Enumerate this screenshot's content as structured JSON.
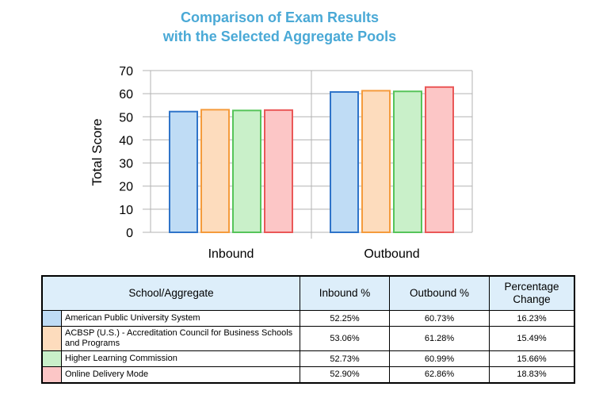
{
  "title_lines": [
    "Comparison of Exam Results",
    "with the Selected Aggregate Pools"
  ],
  "chart_data": {
    "type": "bar",
    "title": "Comparison of Exam Results with the Selected Aggregate Pools",
    "ylabel": "Total Score",
    "xlabel": "",
    "ylim": [
      0,
      70
    ],
    "yticks": [
      0,
      10,
      20,
      30,
      40,
      50,
      60,
      70
    ],
    "categories": [
      "Inbound",
      "Outbound"
    ],
    "grid": true,
    "legend": "table-below",
    "series": [
      {
        "name": "American Public University System",
        "values": [
          52.25,
          60.73
        ],
        "fill": "#bfdcf5",
        "stroke": "#2f74c9"
      },
      {
        "name": "ACBSP (U.S.) - Accreditation Council for Business Schools and Programs",
        "values": [
          53.06,
          61.28
        ],
        "fill": "#fddcbd",
        "stroke": "#f59b3c"
      },
      {
        "name": "Higher Learning Commission",
        "values": [
          52.73,
          60.99
        ],
        "fill": "#c9f0c9",
        "stroke": "#56c45a"
      },
      {
        "name": "Online Delivery Mode",
        "values": [
          52.9,
          62.86
        ],
        "fill": "#fcc6c6",
        "stroke": "#ea5858"
      }
    ]
  },
  "table": {
    "headers": {
      "name": "School/Aggregate",
      "inbound": "Inbound %",
      "outbound": "Outbound %",
      "change": "Percentage Change"
    },
    "rows": [
      {
        "name": "American Public University System",
        "inbound": "52.25%",
        "outbound": "60.73%",
        "change": "16.23%",
        "color": "#bfdcf5"
      },
      {
        "name": "ACBSP (U.S.) - Accreditation Council for Business Schools and Programs",
        "inbound": "53.06%",
        "outbound": "61.28%",
        "change": "15.49%",
        "color": "#fddcbd"
      },
      {
        "name": "Higher Learning Commission",
        "inbound": "52.73%",
        "outbound": "60.99%",
        "change": "15.66%",
        "color": "#c9f0c9"
      },
      {
        "name": "Online Delivery Mode",
        "inbound": "52.90%",
        "outbound": "62.86%",
        "change": "18.83%",
        "color": "#fcc6c6"
      }
    ]
  }
}
